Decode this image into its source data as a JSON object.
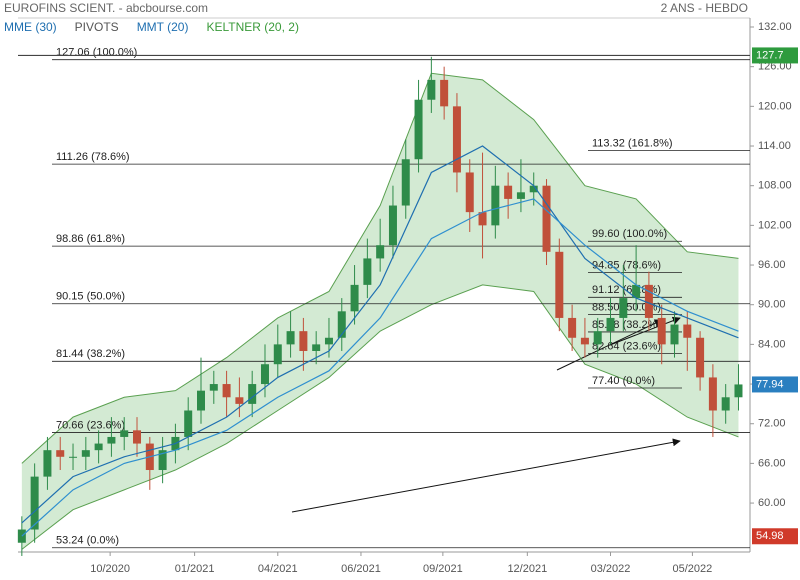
{
  "chart_data": {
    "type": "candlestick",
    "title": "EUROFINS SCIENT. - abcbourse.com",
    "subtitle": "2 ANS - HEBDO",
    "legend": [
      {
        "name": "MME (30)",
        "color": "#1f6fb0"
      },
      {
        "name": "PIVOTS",
        "color": "#555555"
      },
      {
        "name": "MMT (20)",
        "color": "#1f6fb0"
      },
      {
        "name": "KELTNER (20, 2)",
        "color": "#3a9a3a"
      }
    ],
    "up_color": "#2e8b4a",
    "down_color": "#c0503a",
    "xlim": [
      -0.3,
      56.9
    ],
    "xticks": [
      {
        "value": 6.9,
        "label": "10/2020"
      },
      {
        "value": 13.5,
        "label": "01/2021"
      },
      {
        "value": 20.0,
        "label": "04/2021"
      },
      {
        "value": 26.5,
        "label": "06/2021"
      },
      {
        "value": 32.9,
        "label": "09/2021"
      },
      {
        "value": 39.5,
        "label": "12/2021"
      },
      {
        "value": 46.0,
        "label": "03/2022"
      },
      {
        "value": 52.4,
        "label": "05/2022"
      }
    ],
    "ylim": [
      52.6,
      132
    ],
    "yticks": [
      {
        "value": 60,
        "label": "60.00"
      },
      {
        "value": 66,
        "label": "66.00"
      },
      {
        "value": 72,
        "label": "72.00"
      },
      {
        "value": 78,
        "label": "78.00"
      },
      {
        "value": 84,
        "label": "84.00"
      },
      {
        "value": 90,
        "label": "90.00"
      },
      {
        "value": 96,
        "label": "96.00"
      },
      {
        "value": 102,
        "label": "102.00"
      },
      {
        "value": 108,
        "label": "108.00"
      },
      {
        "value": 114,
        "label": "114.00"
      },
      {
        "value": 120,
        "label": "120.00"
      },
      {
        "value": 126,
        "label": "126.00"
      },
      {
        "value": 132,
        "label": "132.00"
      }
    ],
    "open": [
      54,
      56,
      64,
      68,
      67,
      67,
      68,
      69,
      70,
      71,
      69,
      65,
      68,
      70,
      74,
      77,
      78,
      76,
      75,
      78,
      81,
      84,
      86,
      83,
      84,
      85,
      89,
      93,
      97,
      99,
      105,
      112,
      121,
      124,
      120,
      110,
      104,
      102,
      108,
      106,
      107,
      108,
      98,
      88,
      85,
      84,
      86,
      88,
      91,
      93,
      88,
      84,
      87,
      85,
      79,
      74,
      76
    ],
    "high": [
      58,
      66,
      70,
      70,
      69,
      70,
      71,
      73,
      73,
      73,
      70,
      70,
      72,
      76,
      82,
      80,
      80,
      79,
      80,
      84,
      87,
      89,
      88,
      86,
      88,
      91,
      96,
      100,
      103,
      108,
      115,
      124,
      127.5,
      126,
      122,
      112,
      113,
      111,
      110,
      112,
      110,
      109,
      100,
      90,
      88,
      88,
      91,
      96,
      99,
      95,
      90,
      89,
      89,
      86,
      81,
      78,
      81
    ],
    "low": [
      52,
      54,
      62,
      65,
      65,
      65,
      66,
      67,
      68,
      67,
      62,
      63,
      66,
      68,
      72,
      75,
      73,
      73,
      73,
      76,
      79,
      82,
      80,
      81,
      82,
      83,
      87,
      91,
      95,
      97,
      103,
      110,
      119,
      118,
      107,
      101,
      97,
      100,
      103,
      104,
      105,
      96,
      86,
      83,
      82,
      82,
      84,
      86,
      89,
      86,
      81,
      82,
      80,
      77,
      70,
      72,
      74
    ],
    "close": [
      56,
      64,
      68,
      67,
      67,
      68,
      69,
      70,
      71,
      69,
      65,
      68,
      70,
      74,
      77,
      78,
      76,
      75,
      78,
      81,
      84,
      86,
      83,
      84,
      85,
      89,
      93,
      97,
      99,
      105,
      112,
      121,
      124,
      120,
      110,
      104,
      102,
      108,
      106,
      107,
      108,
      98,
      88,
      85,
      84,
      86,
      88,
      91,
      93,
      88,
      84,
      87,
      85,
      79,
      74,
      76,
      77.94
    ],
    "keltner": {
      "color": "#5aa050",
      "x": [
        0,
        4,
        8,
        12,
        16,
        20,
        24,
        28,
        32,
        36,
        40,
        44,
        48,
        52,
        56
      ],
      "upper": [
        66,
        73,
        76,
        77,
        82,
        88,
        92,
        105,
        125,
        124,
        118,
        108,
        106,
        98,
        97
      ],
      "lower": [
        53,
        59,
        62,
        65,
        69,
        74,
        79,
        86,
        90,
        93,
        92,
        81,
        78,
        73,
        70
      ]
    },
    "series": [
      {
        "name": "MMT (20)",
        "color": "#1f6fb0",
        "x": [
          0,
          4,
          8,
          12,
          16,
          20,
          24,
          28,
          32,
          36,
          40,
          44,
          48,
          52,
          56
        ],
        "values": [
          57,
          64,
          67,
          69,
          73,
          79,
          83,
          93,
          110,
          114,
          108,
          97,
          91,
          88,
          85
        ]
      },
      {
        "name": "MME (30)",
        "color": "#2f8fcf",
        "x": [
          0,
          4,
          8,
          12,
          16,
          20,
          24,
          28,
          32,
          36,
          40,
          44,
          48,
          52,
          56
        ],
        "values": [
          55,
          62,
          66,
          68,
          71,
          76,
          80,
          88,
          100,
          104,
          106,
          99,
          93,
          89,
          86
        ]
      }
    ],
    "fib_main": [
      {
        "value": 127.06,
        "label": "127.06  (100.0%)"
      },
      {
        "value": 111.26,
        "label": "111.26  (78.6%)"
      },
      {
        "value": 98.86,
        "label": "98.86  (61.8%)"
      },
      {
        "value": 90.15,
        "label": "90.15  (50.0%)"
      },
      {
        "value": 81.44,
        "label": "81.44  (38.2%)"
      },
      {
        "value": 70.66,
        "label": "70.66  (23.6%)"
      },
      {
        "value": 53.24,
        "label": "53.24  (0.0%)"
      }
    ],
    "fib_extension": [
      {
        "value": 113.32,
        "label": "113.32  (161.8%)"
      }
    ],
    "fib_second": [
      {
        "value": 99.6,
        "label": "99.60  (100.0%)"
      },
      {
        "value": 94.85,
        "label": "94.85  (78.6%)"
      },
      {
        "value": 91.12,
        "label": "91.12  (61.8%)"
      },
      {
        "value": 88.5,
        "label": "88.50  (50.0%)"
      },
      {
        "value": 85.88,
        "label": "85.88  (38.2%)"
      },
      {
        "value": 82.64,
        "label": "82.64  (23.6%)"
      },
      {
        "value": 77.4,
        "label": "77.40  (0.0%)"
      }
    ],
    "price_tags": {
      "values": [
        127.7,
        77.94,
        54.98
      ],
      "colors": [
        "#2e9b3e",
        "#2a7fc0",
        "#d03a2a"
      ]
    }
  }
}
